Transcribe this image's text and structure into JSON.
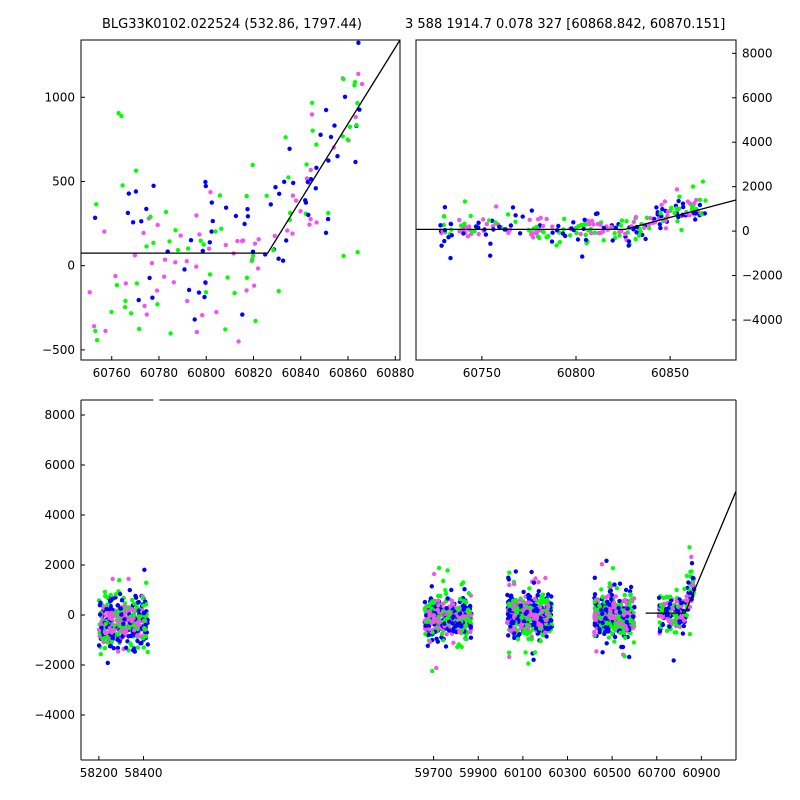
{
  "titles": {
    "left": "BLG33K0102.022524 (532.86, 1797.44)",
    "right": "3 588 1914.7 0.078 327 [60868.842, 60870.151]"
  },
  "colors": {
    "survey_a": "#0000ff",
    "survey_b": "#00ff00",
    "survey_c": "#ee55ee",
    "model": "#000000"
  },
  "chart_data": [
    {
      "id": "zoom-left",
      "type": "scatter",
      "xlim": [
        60747,
        60882
      ],
      "ylim": [
        -560,
        1340
      ],
      "xticks": [
        60760,
        60780,
        60800,
        60820,
        60840,
        60860,
        60880
      ],
      "yticks": [
        -500,
        0,
        500,
        1000
      ],
      "ytick_side": "left",
      "model_line": [
        [
          60747,
          75
        ],
        [
          60826,
          75
        ],
        [
          60882,
          1340
        ]
      ],
      "seasons": [
        {
          "x": [
            60750,
            60868
          ],
          "trend": [
            [
              60750,
              75
            ],
            [
              60826,
              75
            ],
            [
              60868,
              1050
            ]
          ],
          "scatter": 320,
          "n": 190
        }
      ]
    },
    {
      "id": "zoom-right",
      "type": "scatter",
      "xlim": [
        60715,
        60885
      ],
      "ylim": [
        -5800,
        8600
      ],
      "xticks": [
        60750,
        60800,
        60850
      ],
      "yticks": [
        -4000,
        -2000,
        0,
        2000,
        4000,
        6000,
        8000
      ],
      "ytick_side": "right",
      "model_line": [
        [
          60715,
          75
        ],
        [
          60826,
          75
        ],
        [
          60885,
          1400
        ]
      ],
      "seasons": [
        {
          "x": [
            60728,
            60870
          ],
          "trend": [
            [
              60728,
              75
            ],
            [
              60826,
              75
            ],
            [
              60870,
              1200
            ]
          ],
          "scatter": 450,
          "n": 260
        }
      ]
    },
    {
      "id": "full",
      "type": "scatter",
      "xlim": [
        58120,
        61055
      ],
      "ylim": [
        -5800,
        8600
      ],
      "xticks": [
        58200,
        58400,
        59700,
        59900,
        60100,
        60300,
        60500,
        60700,
        60900
      ],
      "xtick_labels": [
        "58200",
        "58400",
        "59700",
        "59900",
        "60100",
        "60300",
        "60500",
        "60700",
        "60900"
      ],
      "axis_breaks": [
        {
          "left": 58428,
          "right": 59655,
          "at_x": 58458
        }
      ],
      "yticks": [
        -4000,
        -2000,
        0,
        2000,
        4000,
        6000,
        8000
      ],
      "ytick_side": "left",
      "model_line": [
        [
          60650,
          75
        ],
        [
          60826,
          75
        ],
        [
          61055,
          4950
        ]
      ],
      "seasons": [
        {
          "x": [
            58200,
            58420
          ],
          "trend": [
            [
              58200,
              -300
            ],
            [
              58420,
              -300
            ]
          ],
          "scatter": 650,
          "n": 420
        },
        {
          "x": [
            59660,
            59870
          ],
          "trend": [
            [
              59660,
              -100
            ],
            [
              59870,
              -100
            ]
          ],
          "scatter": 600,
          "n": 400
        },
        {
          "x": [
            60030,
            60230
          ],
          "trend": [
            [
              60030,
              0
            ],
            [
              60230,
              0
            ]
          ],
          "scatter": 620,
          "n": 420
        },
        {
          "x": [
            60420,
            60600
          ],
          "trend": [
            [
              60420,
              0
            ],
            [
              60600,
              0
            ]
          ],
          "scatter": 600,
          "n": 400
        },
        {
          "x": [
            60710,
            60868
          ],
          "trend": [
            [
              60710,
              75
            ],
            [
              60826,
              75
            ],
            [
              60868,
              1400
            ]
          ],
          "scatter": 450,
          "n": 200
        }
      ]
    }
  ]
}
